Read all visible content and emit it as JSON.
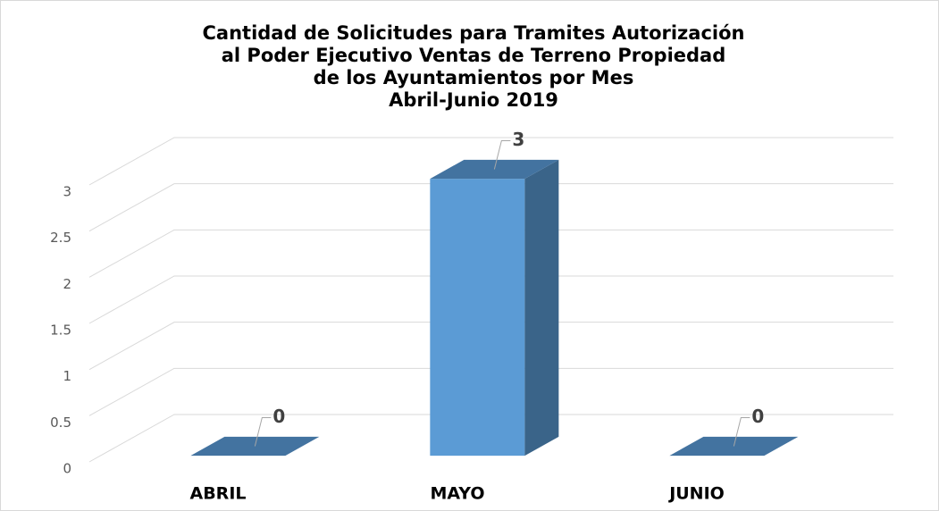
{
  "chart_data": {
    "type": "bar3d",
    "title": [
      "Cantidad de Solicitudes para Tramites Autorización",
      "al Poder Ejecutivo Ventas de Terreno Propiedad",
      "de los Ayuntamientos por Mes",
      "Abril-Junio 2019"
    ],
    "categories": [
      "ABRIL",
      "MAYO",
      "JUNIO"
    ],
    "values": [
      0,
      3,
      0
    ],
    "colors": {
      "front": "#5b9bd5",
      "side": "#3a6489",
      "top": "#4373a0"
    },
    "ylim": [
      0,
      3
    ],
    "yticks": [
      0,
      0.5,
      1,
      1.5,
      2,
      2.5,
      3
    ],
    "grid": true
  }
}
